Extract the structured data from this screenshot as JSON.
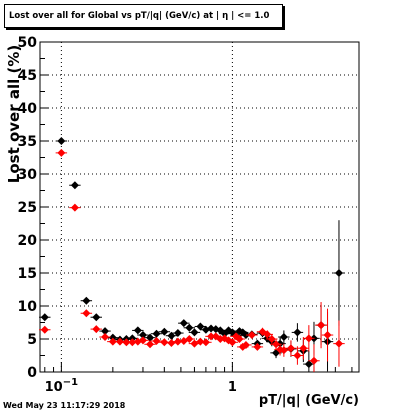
{
  "title": "Lost over all for Global vs pT/|q| (GeV/c) at |  η | <= 1.0",
  "footer": {
    "timestamp": "Wed May 23 11:17:29 2018"
  },
  "chart_data": {
    "type": "scatter",
    "title": "Lost over all for Global vs pT/|q| (GeV/c) at |  η | <= 1.0",
    "xlabel": "pT/|q| (GeV/c)",
    "ylabel": "Lost over all (%)",
    "xscale": "log",
    "xlim": [
      0.075,
      5.5
    ],
    "ylim": [
      0,
      50
    ],
    "grid": true,
    "x_tick_labels": [
      {
        "value": 0.1,
        "base": "10",
        "exp": "−1"
      },
      {
        "value": 1,
        "base": "1",
        "exp": ""
      }
    ],
    "y_ticks": [
      0,
      5,
      10,
      15,
      20,
      25,
      30,
      35,
      40,
      45,
      50
    ],
    "y_tick_labels": [
      "0",
      "5",
      "10",
      "15",
      "20",
      "25",
      "30",
      "35",
      "40",
      "45",
      "50"
    ],
    "series": [
      {
        "color": "#000000",
        "x": [
          0.08,
          0.1,
          0.12,
          0.14,
          0.16,
          0.18,
          0.2,
          0.22,
          0.24,
          0.26,
          0.28,
          0.3,
          0.33,
          0.36,
          0.4,
          0.44,
          0.48,
          0.52,
          0.56,
          0.6,
          0.65,
          0.7,
          0.75,
          0.8,
          0.85,
          0.9,
          0.95,
          1.0,
          1.05,
          1.1,
          1.15,
          1.2,
          1.3,
          1.4,
          1.5,
          1.6,
          1.7,
          1.8,
          1.9,
          2.0,
          2.2,
          2.4,
          2.6,
          2.8,
          3.0,
          3.3,
          3.6,
          4.2
        ],
        "y": [
          8.3,
          35.0,
          28.3,
          10.8,
          8.3,
          6.2,
          5.2,
          4.9,
          5.0,
          5.1,
          6.3,
          5.6,
          5.2,
          5.8,
          6.1,
          5.5,
          5.9,
          7.4,
          6.7,
          6.0,
          6.9,
          6.4,
          6.6,
          6.5,
          6.3,
          5.8,
          6.3,
          6.0,
          5.5,
          6.2,
          6.0,
          5.6,
          5.7,
          4.3,
          5.9,
          5.1,
          4.6,
          2.9,
          4.3,
          5.3,
          3.5,
          6.0,
          3.2,
          1.2,
          5.1,
          7.1,
          4.6,
          15.0
        ],
        "y_err": [
          0.5,
          0.5,
          0.5,
          0.3,
          0.3,
          0.3,
          0.2,
          0.2,
          0.2,
          0.2,
          0.2,
          0.2,
          0.2,
          0.2,
          0.2,
          0.2,
          0.2,
          0.3,
          0.3,
          0.3,
          0.3,
          0.3,
          0.3,
          0.3,
          0.3,
          0.3,
          0.3,
          0.3,
          0.3,
          0.4,
          0.4,
          0.4,
          0.5,
          0.5,
          0.6,
          0.6,
          0.7,
          0.8,
          0.9,
          1.0,
          1.2,
          1.4,
          1.7,
          2.0,
          2.5,
          3.0,
          4.5,
          8.0
        ]
      },
      {
        "color": "#ff0000",
        "x": [
          0.08,
          0.1,
          0.12,
          0.14,
          0.16,
          0.18,
          0.2,
          0.22,
          0.24,
          0.26,
          0.28,
          0.3,
          0.33,
          0.36,
          0.4,
          0.44,
          0.48,
          0.52,
          0.56,
          0.6,
          0.65,
          0.7,
          0.75,
          0.8,
          0.85,
          0.9,
          0.95,
          1.0,
          1.05,
          1.1,
          1.15,
          1.2,
          1.3,
          1.4,
          1.5,
          1.6,
          1.7,
          1.8,
          1.9,
          2.0,
          2.2,
          2.4,
          2.6,
          2.8,
          3.0,
          3.3,
          3.6,
          4.2
        ],
        "y": [
          6.4,
          33.2,
          24.9,
          8.9,
          6.5,
          5.3,
          4.6,
          4.6,
          4.5,
          4.5,
          4.6,
          4.8,
          4.2,
          4.7,
          4.5,
          4.4,
          4.6,
          4.7,
          5.0,
          4.3,
          4.6,
          4.5,
          5.4,
          5.4,
          5.0,
          5.1,
          4.8,
          4.5,
          5.4,
          5.0,
          3.8,
          4.1,
          5.6,
          3.8,
          6.1,
          5.7,
          5.0,
          4.2,
          3.4,
          3.3,
          3.6,
          2.5,
          3.6,
          5.1,
          1.7,
          7.1,
          5.6,
          4.3
        ],
        "y_err": [
          0.5,
          0.5,
          0.5,
          0.3,
          0.3,
          0.3,
          0.2,
          0.2,
          0.2,
          0.2,
          0.2,
          0.2,
          0.2,
          0.2,
          0.2,
          0.2,
          0.2,
          0.3,
          0.3,
          0.3,
          0.3,
          0.3,
          0.3,
          0.3,
          0.3,
          0.3,
          0.3,
          0.3,
          0.3,
          0.4,
          0.4,
          0.4,
          0.5,
          0.5,
          0.6,
          0.6,
          0.7,
          0.8,
          0.9,
          1.0,
          1.2,
          1.4,
          1.7,
          2.0,
          2.5,
          3.5,
          4.0,
          3.5
        ]
      }
    ]
  }
}
